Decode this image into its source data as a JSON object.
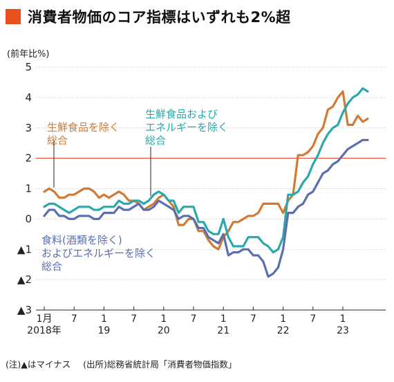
{
  "title": "消費者物価のコア指標はいずれも2%超",
  "colors": {
    "title_mark": "#e8501e",
    "ref_line": "#e05a3a",
    "axis": "#222222",
    "grid": "#bbbbbb"
  },
  "footnote": {
    "note": "(注)▲はマイナス",
    "source": "(出所)総務省統計局「消費者物価指数」"
  },
  "chart_data": {
    "type": "line",
    "ylabel": "(前年比%)",
    "ylim": [
      -3,
      5
    ],
    "yticks": [
      -3,
      -2,
      -1,
      0,
      1,
      2,
      3,
      4,
      5
    ],
    "ytick_labels": [
      "▲3",
      "▲2",
      "▲1",
      "0",
      "1",
      "2",
      "3",
      "4",
      "5"
    ],
    "reference_line": 2,
    "x_start": "2018-01",
    "x_end": "2023-08",
    "xtick_labels": [
      {
        "month": "2018-01",
        "top": "1月",
        "bottom": "2018年"
      },
      {
        "month": "2018-07",
        "top": "7",
        "bottom": ""
      },
      {
        "month": "2019-01",
        "top": "1",
        "bottom": "19"
      },
      {
        "month": "2019-07",
        "top": "7",
        "bottom": ""
      },
      {
        "month": "2020-01",
        "top": "1",
        "bottom": "20"
      },
      {
        "month": "2020-07",
        "top": "7",
        "bottom": ""
      },
      {
        "month": "2021-01",
        "top": "1",
        "bottom": "21"
      },
      {
        "month": "2021-07",
        "top": "7",
        "bottom": ""
      },
      {
        "month": "2022-01",
        "top": "1",
        "bottom": "22"
      },
      {
        "month": "2022-07",
        "top": "7",
        "bottom": ""
      },
      {
        "month": "2023-01",
        "top": "1",
        "bottom": "23"
      }
    ],
    "series": [
      {
        "name": "生鮮食品を除く総合",
        "label_lines": [
          "生鮮食品を除く",
          "総合"
        ],
        "color": "#d07a35",
        "values": [
          0.9,
          1.0,
          0.9,
          0.7,
          0.7,
          0.8,
          0.8,
          0.9,
          1.0,
          1.0,
          0.9,
          0.7,
          0.8,
          0.7,
          0.8,
          0.9,
          0.8,
          0.6,
          0.6,
          0.5,
          0.3,
          0.4,
          0.5,
          0.7,
          0.8,
          0.6,
          0.4,
          -0.2,
          -0.2,
          0.0,
          0.0,
          -0.4,
          -0.4,
          -0.7,
          -0.9,
          -1.0,
          -0.6,
          -0.4,
          -0.1,
          -0.1,
          0.0,
          0.1,
          0.1,
          0.2,
          0.5,
          0.5,
          0.5,
          0.5,
          0.2,
          0.6,
          0.8,
          2.1,
          2.1,
          2.2,
          2.4,
          2.8,
          3.0,
          3.6,
          3.7,
          4.0,
          4.2,
          3.1,
          3.1,
          3.4,
          3.2,
          3.3
        ]
      },
      {
        "name": "生鮮食品およびエネルギーを除く総合",
        "label_lines": [
          "生鮮食品および",
          "エネルギーを除く",
          "総合"
        ],
        "color": "#2aa9a8",
        "values": [
          0.4,
          0.5,
          0.5,
          0.4,
          0.3,
          0.2,
          0.3,
          0.4,
          0.4,
          0.4,
          0.3,
          0.3,
          0.4,
          0.4,
          0.4,
          0.6,
          0.5,
          0.5,
          0.6,
          0.6,
          0.5,
          0.6,
          0.8,
          0.9,
          0.8,
          0.6,
          0.6,
          0.2,
          0.4,
          0.4,
          0.4,
          -0.1,
          -0.1,
          -0.4,
          -0.5,
          -0.5,
          0.0,
          -0.6,
          -0.9,
          -0.9,
          -0.9,
          -0.6,
          -0.6,
          -0.6,
          -0.8,
          -0.9,
          -1.1,
          -1.0,
          -0.6,
          0.8,
          0.8,
          0.9,
          1.2,
          1.4,
          1.8,
          2.1,
          2.5,
          2.8,
          3.0,
          3.1,
          3.5,
          3.8,
          4.0,
          4.1,
          4.3,
          4.2
        ]
      },
      {
        "name": "食料(酒類を除く)およびエネルギーを除く総合",
        "label_lines": [
          "食料(酒類を除く)",
          "およびエネルギーを除く",
          "総合"
        ],
        "color": "#5a6fae",
        "values": [
          0.1,
          0.3,
          0.3,
          0.1,
          0.1,
          0.0,
          0.0,
          0.1,
          0.1,
          0.1,
          0.0,
          0.0,
          0.2,
          0.2,
          0.2,
          0.4,
          0.3,
          0.3,
          0.4,
          0.5,
          0.3,
          0.3,
          0.4,
          0.6,
          0.5,
          0.4,
          0.3,
          0.0,
          0.1,
          0.1,
          0.0,
          -0.3,
          -0.3,
          -0.6,
          -0.7,
          -0.8,
          -0.5,
          -1.2,
          -1.1,
          -1.1,
          -1.0,
          -1.0,
          -1.2,
          -1.2,
          -1.4,
          -1.9,
          -1.8,
          -1.6,
          -1.0,
          0.2,
          0.2,
          0.4,
          0.5,
          0.8,
          0.9,
          1.2,
          1.5,
          1.6,
          1.8,
          1.9,
          2.1,
          2.3,
          2.4,
          2.5,
          2.6,
          2.6
        ]
      }
    ]
  }
}
